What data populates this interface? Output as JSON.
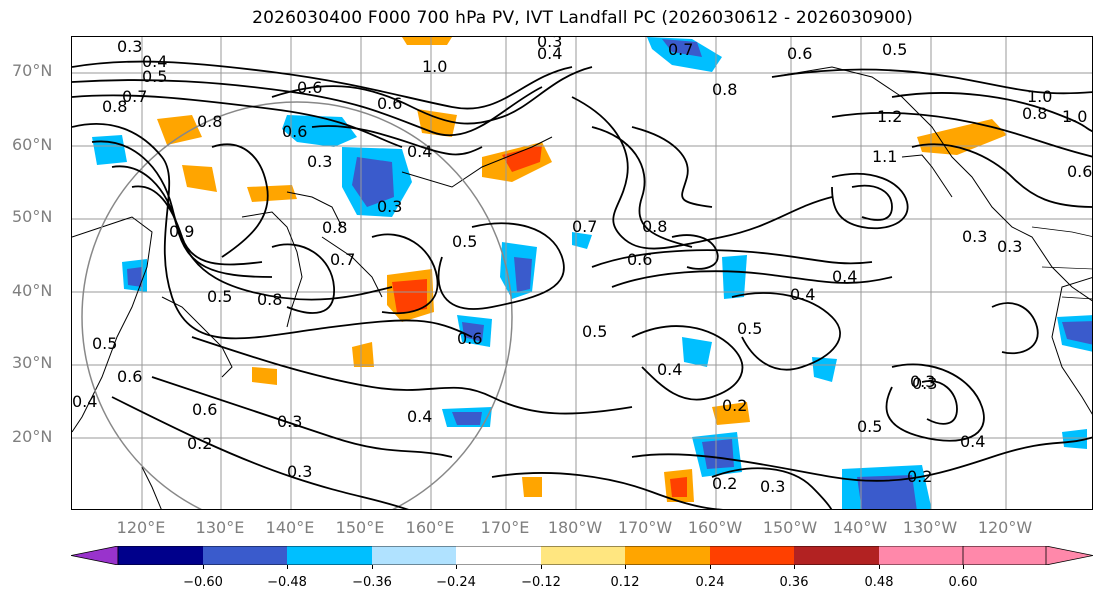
{
  "title": "2026030400 F000 700 hPa PV, IVT Landfall PC (2026030612 - 2026030900)",
  "latitude_labels": [
    "70°N",
    "60°N",
    "50°N",
    "40°N",
    "30°N",
    "20°N"
  ],
  "longitude_labels": [
    "120°E",
    "130°E",
    "140°E",
    "150°E",
    "160°E",
    "170°E",
    "180°W",
    "170°W",
    "160°W",
    "150°W",
    "140°W",
    "130°W",
    "120°W"
  ],
  "colorbar": {
    "ticks": [
      "−0.60",
      "−0.48",
      "−0.36",
      "−0.24",
      "−0.12",
      "0.12",
      "0.24",
      "0.36",
      "0.48",
      "0.60"
    ],
    "colors": [
      "#9933cc",
      "#00008b",
      "#3a5bcc",
      "#00bfff",
      "#b0e2ff",
      "#ffffff",
      "#ffe680",
      "#ffa500",
      "#ff4000",
      "#b22222",
      "#ff88aa"
    ]
  },
  "contour_labels": [
    "0.3",
    "0.4",
    "0.5",
    "0.7",
    "0.8",
    "0.6",
    "1.0",
    "0.6",
    "0.4",
    "0.3",
    "0.7",
    "0.6",
    "0.5",
    "0.8",
    "0.4",
    "0.3",
    "1.2",
    "0.8",
    "1.1",
    "0.3",
    "1.0",
    "0.5",
    "0.6",
    "0.8",
    "0.7",
    "0.5",
    "0.4",
    "0.3",
    "0.6",
    "0.4",
    "0.9",
    "0.8",
    "0.6",
    "0.5",
    "0.8",
    "0.5",
    "0.7",
    "0.3",
    "0.6",
    "0.6",
    "0.4",
    "0.2",
    "0.3",
    "0.3",
    "0.4",
    "0.5",
    "0.3",
    "0.2",
    "0.2",
    "0.3",
    "0.4",
    "0.5",
    "0.3",
    "0.4",
    "0.2",
    "1.0",
    "0.8",
    "0.6"
  ]
}
